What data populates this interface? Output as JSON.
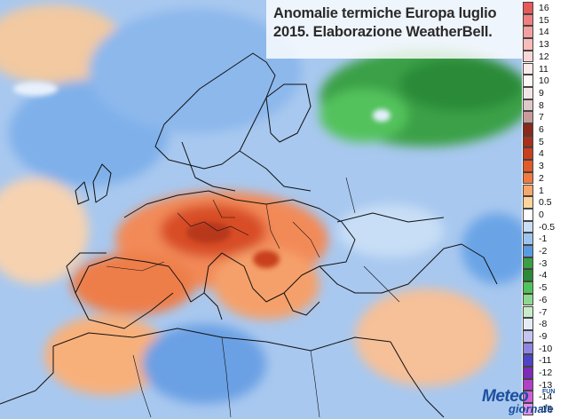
{
  "title_line1": "Anomalie termiche Europa luglio",
  "title_line2": "2015. Elaborazione WeatherBell.",
  "legend": {
    "entries": [
      {
        "label": "16",
        "color": "#e65a5a"
      },
      {
        "label": "15",
        "color": "#f08080"
      },
      {
        "label": "14",
        "color": "#f5a0a0"
      },
      {
        "label": "13",
        "color": "#f8bcbc"
      },
      {
        "label": "12",
        "color": "#fbd6d6"
      },
      {
        "label": "11",
        "color": "#fdeaea"
      },
      {
        "label": "10",
        "color": "#fff6f6"
      },
      {
        "label": "9",
        "color": "#f3e6e6"
      },
      {
        "label": "8",
        "color": "#e0c8c8"
      },
      {
        "label": "7",
        "color": "#c89a9a"
      },
      {
        "label": "6",
        "color": "#8b2a1a"
      },
      {
        "label": "5",
        "color": "#a8301c"
      },
      {
        "label": "4",
        "color": "#c8401f"
      },
      {
        "label": "3",
        "color": "#e05a2a"
      },
      {
        "label": "2",
        "color": "#f07a42"
      },
      {
        "label": "1",
        "color": "#f8a66c"
      },
      {
        "label": "0.5",
        "color": "#fcd49c"
      },
      {
        "label": "0",
        "color": "#ffffff"
      },
      {
        "label": "-0.5",
        "color": "#c8def6"
      },
      {
        "label": "-1",
        "color": "#9cc4ee"
      },
      {
        "label": "-2",
        "color": "#5a9ae0"
      },
      {
        "label": "-3",
        "color": "#3aa046"
      },
      {
        "label": "-4",
        "color": "#2c8a38"
      },
      {
        "label": "-5",
        "color": "#52c25c"
      },
      {
        "label": "-6",
        "color": "#8cd890"
      },
      {
        "label": "-7",
        "color": "#c8ecc8"
      },
      {
        "label": "-8",
        "color": "#e6ecf6"
      },
      {
        "label": "-9",
        "color": "#c6c4f0"
      },
      {
        "label": "-10",
        "color": "#8c86e0"
      },
      {
        "label": "-11",
        "color": "#4e44c8"
      },
      {
        "label": "-12",
        "color": "#7c2cb8"
      },
      {
        "label": "-13",
        "color": "#b040c8"
      },
      {
        "label": "-14",
        "color": "#d060d8"
      },
      {
        "label": "-15",
        "color": "#e490e8"
      }
    ]
  },
  "logo": {
    "line1": "Meteo",
    "line2": "giornale",
    "fun": "FUN"
  }
}
